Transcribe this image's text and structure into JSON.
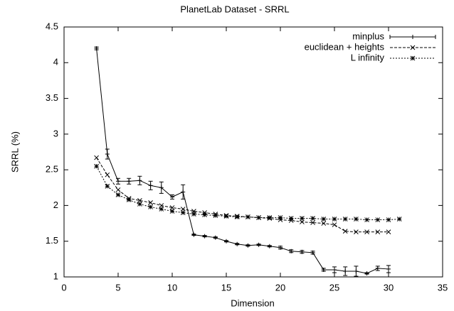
{
  "chart_data": {
    "type": "line",
    "title": "PlanetLab Dataset - SRRL",
    "x_label": "Dimension",
    "y_label": "SRRL (%)",
    "xlim": [
      0,
      35
    ],
    "xticks": [
      0,
      5,
      10,
      15,
      20,
      25,
      30,
      35
    ],
    "ylim": [
      1,
      4.5
    ],
    "yticks": [
      1,
      1.5,
      2,
      2.5,
      3,
      3.5,
      4,
      4.5
    ],
    "legend": "top-right",
    "series": [
      {
        "name": "minplus",
        "color": "#000000",
        "dash": "none",
        "marker": "plus",
        "x": [
          3,
          4,
          5,
          6,
          7,
          8,
          9,
          10,
          11,
          12,
          13,
          14,
          15,
          16,
          17,
          18,
          19,
          20,
          21,
          22,
          23,
          24,
          25,
          26,
          27,
          28,
          29,
          30
        ],
        "values": [
          4.2,
          2.72,
          2.34,
          2.34,
          2.35,
          2.28,
          2.25,
          2.12,
          2.19,
          1.59,
          1.57,
          1.55,
          1.5,
          1.46,
          1.44,
          1.45,
          1.43,
          1.41,
          1.36,
          1.35,
          1.34,
          1.1,
          1.1,
          1.08,
          1.08,
          1.05,
          1.12,
          1.11
        ],
        "errors": [
          0.02,
          0.07,
          0.04,
          0.04,
          0.06,
          0.06,
          0.08,
          0.03,
          0.1,
          0.01,
          0.01,
          0.01,
          0.01,
          0.01,
          0.01,
          0.01,
          0.01,
          0.02,
          0.02,
          0.02,
          0.02,
          0.02,
          0.04,
          0.06,
          0.07,
          0.01,
          0.03,
          0.05
        ]
      },
      {
        "name": "euclidean + heights",
        "color": "#000000",
        "dash": "4,2",
        "marker": "cross",
        "x": [
          3,
          4,
          5,
          6,
          7,
          8,
          9,
          10,
          11,
          12,
          13,
          14,
          15,
          16,
          17,
          18,
          19,
          20,
          21,
          22,
          23,
          24,
          25,
          26,
          27,
          28,
          29,
          30
        ],
        "values": [
          2.67,
          2.43,
          2.22,
          2.1,
          2.07,
          2.04,
          2.0,
          1.97,
          1.95,
          1.92,
          1.9,
          1.88,
          1.86,
          1.85,
          1.84,
          1.83,
          1.82,
          1.8,
          1.79,
          1.77,
          1.76,
          1.75,
          1.73,
          1.64,
          1.63,
          1.63,
          1.63,
          1.63
        ]
      },
      {
        "name": "L infinity",
        "color": "#000000",
        "dash": "2,2",
        "marker": "star",
        "x": [
          3,
          4,
          5,
          6,
          7,
          8,
          9,
          10,
          11,
          12,
          13,
          14,
          15,
          16,
          17,
          18,
          19,
          20,
          21,
          22,
          23,
          24,
          25,
          26,
          27,
          28,
          29,
          30,
          31
        ],
        "values": [
          2.55,
          2.27,
          2.15,
          2.08,
          2.02,
          1.98,
          1.95,
          1.92,
          1.9,
          1.88,
          1.87,
          1.86,
          1.85,
          1.84,
          1.84,
          1.83,
          1.83,
          1.83,
          1.82,
          1.82,
          1.82,
          1.81,
          1.81,
          1.81,
          1.81,
          1.8,
          1.8,
          1.8,
          1.81
        ]
      }
    ]
  }
}
